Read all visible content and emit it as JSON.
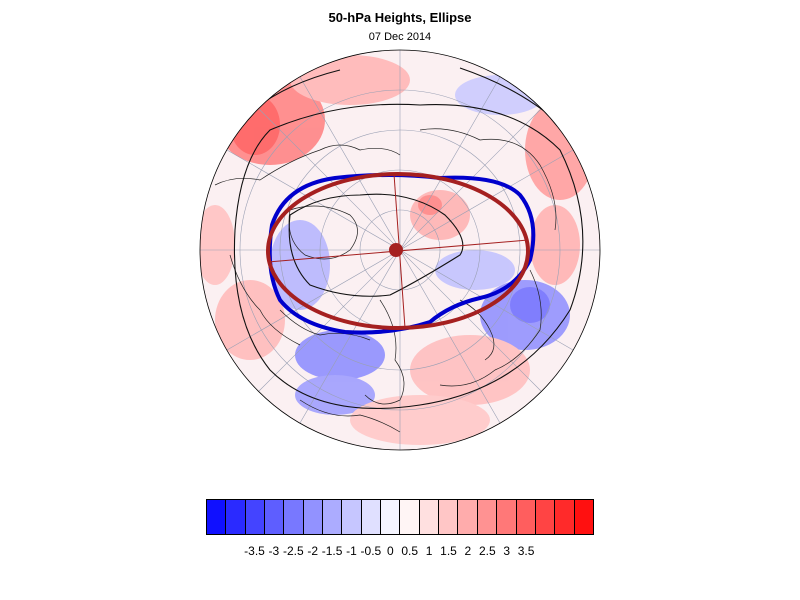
{
  "title": "50-hPa Heights, Ellipse",
  "date": "07 Dec 2014",
  "colorbar": {
    "colors": [
      "#1010ff",
      "#2a2aff",
      "#4444ff",
      "#5e5eff",
      "#7878ff",
      "#9292ff",
      "#acacff",
      "#c6c6ff",
      "#e0e0ff",
      "#f5f5ff",
      "#fff5f5",
      "#ffe0e0",
      "#ffc6c6",
      "#ffacac",
      "#ff9292",
      "#ff7878",
      "#ff5e5e",
      "#ff4444",
      "#ff2a2a",
      "#ff1010"
    ],
    "tick_labels": [
      "-3.5",
      "-3",
      "-2.5",
      "-2",
      "-1.5",
      "-1",
      "-0.5",
      "0",
      "0.5",
      "1",
      "1.5",
      "2",
      "2.5",
      "3",
      "3.5"
    ]
  },
  "map": {
    "projection": "polar-stereographic north",
    "contour_color": "#0000cc",
    "ellipse_color": "#a52020"
  }
}
